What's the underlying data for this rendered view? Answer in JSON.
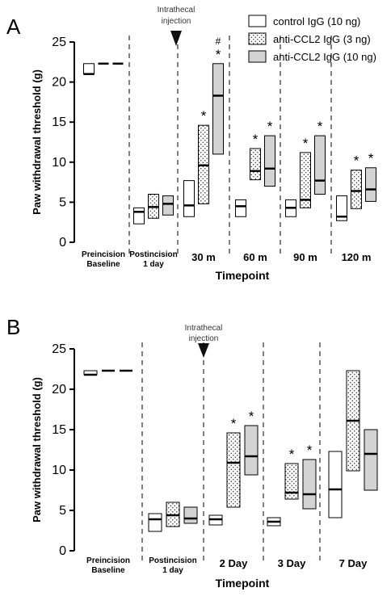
{
  "legend": {
    "entries": [
      {
        "label": "control IgG (10 ng)",
        "pattern": "white"
      },
      {
        "label": "anti-CCL2 IgG (3 ng)",
        "pattern": "dots"
      },
      {
        "label": "anti-CCL2 IgG (10 ng)",
        "pattern": "gray"
      }
    ]
  },
  "colors": {
    "box_gray": "#d3d3d3",
    "line": "#000000"
  },
  "chart_data": [
    {
      "panel_label": "A",
      "type": "box",
      "ylabel": "Paw withdrawal threshold (g)",
      "xlabel": "Timepoint",
      "ylim": [
        0,
        25
      ],
      "yticks": [
        "0",
        "5",
        "10",
        "15",
        "20",
        "25"
      ],
      "grid": false,
      "annotation": {
        "text": "Intrathecal\ninjection",
        "marker": "down-triangle"
      },
      "categories": [
        "Preincision\nBaseline",
        "Postincision\n1 day",
        "30 m",
        "60 m",
        "90 m",
        "120 m"
      ],
      "series": [
        {
          "name": "control IgG (10 ng)",
          "values": [
            {
              "low": 21.0,
              "high": 22.3,
              "median": 21.0
            },
            {
              "low": 2.3,
              "high": 4.3,
              "median": 3.8
            },
            {
              "low": 3.2,
              "high": 7.7,
              "median": 4.6
            },
            {
              "low": 3.2,
              "high": 5.3,
              "median": 4.5
            },
            {
              "low": 3.2,
              "high": 5.3,
              "median": 4.3
            },
            {
              "low": 2.7,
              "high": 5.8,
              "median": 3.2
            }
          ]
        },
        {
          "name": "anti-CCL2 IgG (3 ng)",
          "values": [
            {
              "low": 22.3,
              "high": 22.3,
              "median": 22.3
            },
            {
              "low": 3.0,
              "high": 6.0,
              "median": 4.4
            },
            {
              "low": 4.8,
              "high": 14.6,
              "median": 9.6,
              "sig": "*"
            },
            {
              "low": 7.8,
              "high": 11.7,
              "median": 8.9,
              "sig": "*"
            },
            {
              "low": 4.3,
              "high": 11.2,
              "median": 5.3,
              "sig": "*"
            },
            {
              "low": 4.2,
              "high": 9.0,
              "median": 6.4,
              "sig": "*"
            }
          ]
        },
        {
          "name": "anti-CCL2 IgG (10 ng)",
          "values": [
            {
              "low": 22.3,
              "high": 22.3,
              "median": 22.3
            },
            {
              "low": 3.4,
              "high": 5.8,
              "median": 4.8
            },
            {
              "low": 11.0,
              "high": 22.3,
              "median": 18.3,
              "sig": "*",
              "sig2": "#"
            },
            {
              "low": 7.0,
              "high": 13.3,
              "median": 9.2,
              "sig": "*"
            },
            {
              "low": 6.0,
              "high": 13.3,
              "median": 7.7,
              "sig": "*"
            },
            {
              "low": 5.1,
              "high": 9.3,
              "median": 6.6,
              "sig": "*"
            }
          ]
        }
      ]
    },
    {
      "panel_label": "B",
      "type": "box",
      "ylabel": "Paw withdrawal threshold (g)",
      "xlabel": "Timepoint",
      "ylim": [
        0,
        25
      ],
      "yticks": [
        "0",
        "5",
        "10",
        "15",
        "20",
        "25"
      ],
      "grid": false,
      "annotation": {
        "text": "Intrathecal\ninjection",
        "marker": "down-triangle"
      },
      "categories": [
        "Preincision\nBaseline",
        "Postincision\n1 day",
        "2 Day",
        "3 Day",
        "7 Day"
      ],
      "series": [
        {
          "name": "control IgG (10 ng)",
          "values": [
            {
              "low": 21.8,
              "high": 22.3,
              "median": 21.8
            },
            {
              "low": 2.4,
              "high": 4.6,
              "median": 3.9
            },
            {
              "low": 3.2,
              "high": 4.4,
              "median": 3.9
            },
            {
              "low": 3.1,
              "high": 4.1,
              "median": 3.6
            },
            {
              "low": 4.1,
              "high": 12.3,
              "median": 7.6
            }
          ]
        },
        {
          "name": "anti-CCL2 IgG (3 ng)",
          "values": [
            {
              "low": 22.3,
              "high": 22.3,
              "median": 22.3
            },
            {
              "low": 3.0,
              "high": 6.0,
              "median": 4.4
            },
            {
              "low": 5.4,
              "high": 14.6,
              "median": 10.9,
              "sig": "*"
            },
            {
              "low": 6.4,
              "high": 10.8,
              "median": 7.2,
              "sig": "*"
            },
            {
              "low": 9.9,
              "high": 22.3,
              "median": 16.1
            }
          ]
        },
        {
          "name": "anti-CCL2 IgG (10 ng)",
          "values": [
            {
              "low": 22.3,
              "high": 22.3,
              "median": 22.3
            },
            {
              "low": 3.4,
              "high": 5.4,
              "median": 4.0
            },
            {
              "low": 9.4,
              "high": 15.5,
              "median": 11.7,
              "sig": "*"
            },
            {
              "low": 5.2,
              "high": 11.3,
              "median": 7.0,
              "sig": "*"
            },
            {
              "low": 7.5,
              "high": 15.0,
              "median": 12.0
            }
          ]
        }
      ]
    }
  ]
}
